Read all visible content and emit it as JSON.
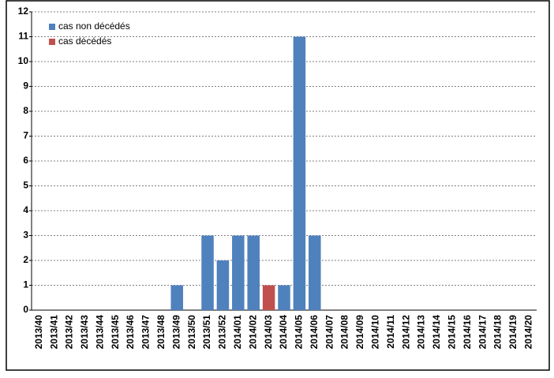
{
  "chart_data": {
    "type": "stacked_bar",
    "categories": [
      "2013/40",
      "2013/41",
      "2013/42",
      "2013/43",
      "2013/44",
      "2013/45",
      "2013/46",
      "2013/47",
      "2013/48",
      "2013/49",
      "2013/50",
      "2013/51",
      "2013/52",
      "2014/01",
      "2014/02",
      "2014/03",
      "2014/04",
      "2014/05",
      "2014/06",
      "2014/07",
      "2014/08",
      "2014/09",
      "2014/10",
      "2014/11",
      "2014/12",
      "2014/13",
      "2014/14",
      "2014/15",
      "2014/16",
      "2014/17",
      "2014/18",
      "2014/19",
      "2014/20"
    ],
    "series": [
      {
        "name": "cas non décédés",
        "color": "#4f81bd",
        "values": [
          0,
          0,
          0,
          0,
          0,
          0,
          0,
          0,
          0,
          1,
          0,
          3,
          2,
          3,
          3,
          0,
          1,
          11,
          3,
          0,
          0,
          0,
          0,
          0,
          0,
          0,
          0,
          0,
          0,
          0,
          0,
          0,
          0
        ]
      },
      {
        "name": "cas décédés",
        "color": "#c0504d",
        "values": [
          0,
          0,
          0,
          0,
          0,
          0,
          0,
          0,
          0,
          0,
          0,
          0,
          0,
          0,
          0,
          1,
          0,
          0,
          0,
          0,
          0,
          0,
          0,
          0,
          0,
          0,
          0,
          0,
          0,
          0,
          0,
          0,
          0
        ]
      }
    ],
    "ylim": [
      0,
      12
    ],
    "yticks": [
      0,
      1,
      2,
      3,
      4,
      5,
      6,
      7,
      8,
      9,
      10,
      11,
      12
    ],
    "grid": true,
    "legend": "top-left"
  }
}
